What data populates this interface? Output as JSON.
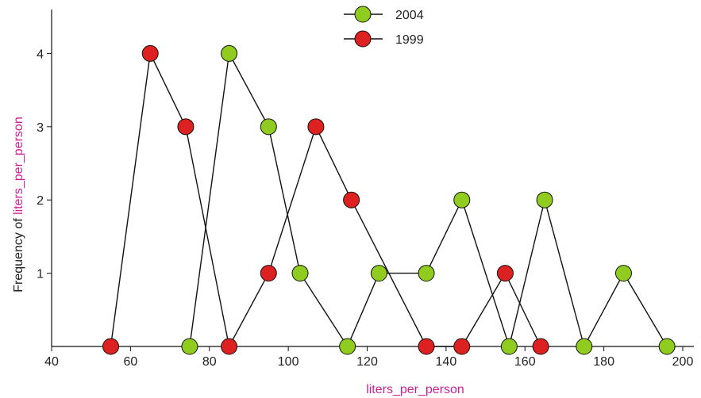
{
  "chart_data": {
    "type": "line",
    "xlabel": "liters_per_person",
    "ylabel_prefix": "Frequency of ",
    "ylabel_var": "liters_per_person",
    "xlim": [
      40,
      200
    ],
    "ylim": [
      0,
      4.6
    ],
    "x_ticks": [
      40,
      60,
      80,
      100,
      120,
      140,
      160,
      180,
      200
    ],
    "y_ticks": [
      1,
      2,
      3,
      4
    ],
    "grid": false,
    "legend_position": "top-center",
    "series": [
      {
        "name": "2004",
        "color": "#8fcc1f",
        "points": [
          [
            75,
            0
          ],
          [
            85,
            4
          ],
          [
            95,
            3
          ],
          [
            103,
            1
          ],
          [
            115,
            0
          ],
          [
            123,
            1
          ],
          [
            135,
            1
          ],
          [
            144,
            2
          ],
          [
            156,
            0
          ],
          [
            165,
            2
          ],
          [
            175,
            0
          ],
          [
            185,
            1
          ],
          [
            196,
            0
          ]
        ]
      },
      {
        "name": "1999",
        "color": "#dd2020",
        "points": [
          [
            55,
            0
          ],
          [
            65,
            4
          ],
          [
            74,
            3
          ],
          [
            85,
            0
          ],
          [
            95,
            1
          ],
          [
            107,
            3
          ],
          [
            116,
            2
          ],
          [
            135,
            0
          ],
          [
            144,
            0
          ],
          [
            155,
            1
          ],
          [
            164,
            0
          ]
        ]
      }
    ]
  },
  "colors": {
    "axis_title": "#cc2299",
    "axis_text": "#222222",
    "line": "#111111"
  }
}
